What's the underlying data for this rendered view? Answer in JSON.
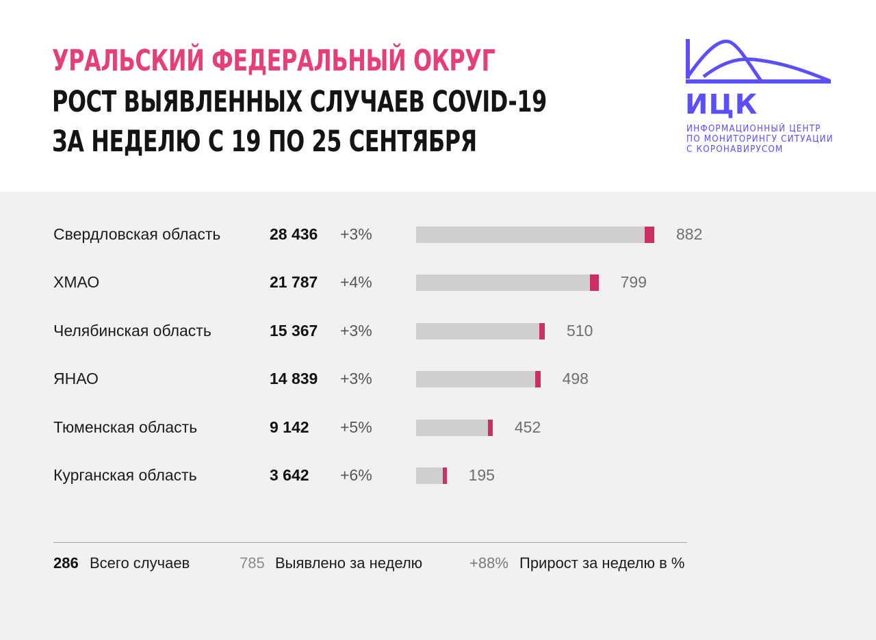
{
  "header": {
    "title_region": "УРАЛЬСКИЙ ФЕДЕРАЛЬНЫЙ ОКРУГ",
    "title_line1": "РОСТ ВЫЯВЛЕННЫХ СЛУЧАЕВ COVID-19",
    "title_line2": "ЗА НЕДЕЛЮ С 19 ПО 25 СЕНТЯБРЯ"
  },
  "logo": {
    "abbr": "ИЦК",
    "line1": "ИНФОРМАЦИОННЫЙ ЦЕНТР",
    "line2": "ПО МОНИТОРИНГУ СИТУАЦИИ",
    "line3": "С КОРОНАВИРУСОМ"
  },
  "colors": {
    "title_accent": "#e63e78",
    "logo": "#5a4ffa",
    "bar_total": "#cfcfcf",
    "bar_week": "#cc2f66"
  },
  "chart_data": {
    "type": "bar",
    "orientation": "horizontal",
    "categories": [
      "Свердловская область",
      "ХМАО",
      "Челябинская область",
      "ЯНАО",
      "Тюменская область",
      "Курганская область"
    ],
    "series": [
      {
        "name": "Всего случаев",
        "values": [
          28436,
          21787,
          15367,
          14839,
          9142,
          3642
        ],
        "labels": [
          "28 436",
          "21 787",
          "15 367",
          "14 839",
          "9 142",
          "3 642"
        ]
      },
      {
        "name": "Выявлено за неделю",
        "values": [
          882,
          799,
          510,
          498,
          452,
          195
        ]
      },
      {
        "name": "Прирост за неделю в %",
        "values": [
          3,
          4,
          3,
          3,
          5,
          6
        ],
        "labels": [
          "+3%",
          "+4%",
          "+3%",
          "+3%",
          "+5%",
          "+6%"
        ]
      }
    ],
    "xlim": [
      0,
      28436
    ]
  },
  "legend": {
    "total_sample": "286",
    "total_label": "Всего случаев",
    "week_sample": "785",
    "week_label": "Выявлено за неделю",
    "growth_sample": "+88%",
    "growth_label": "Прирост за неделю в %"
  }
}
